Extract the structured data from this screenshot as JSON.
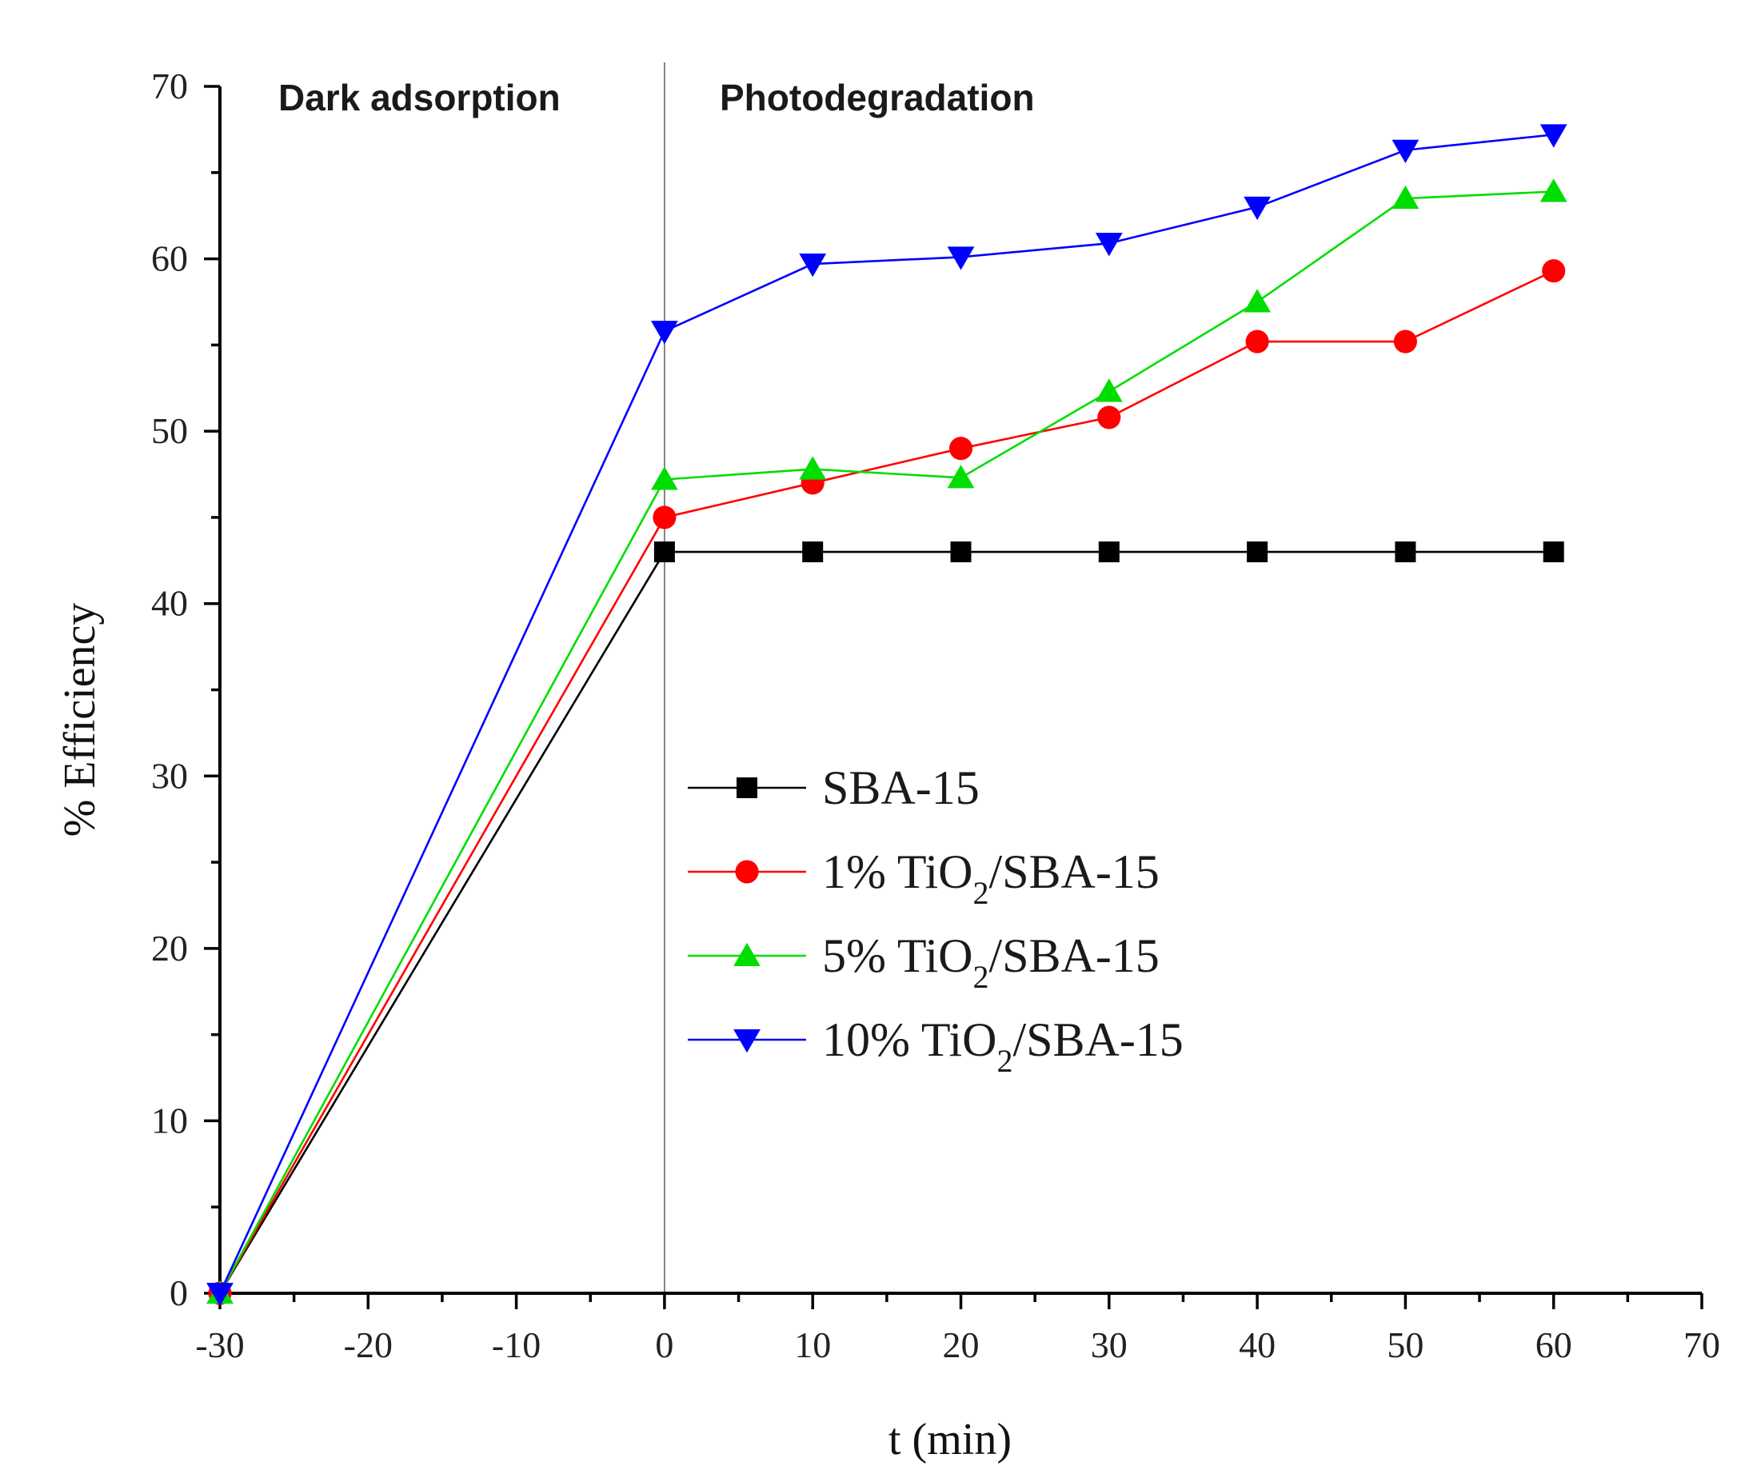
{
  "chart_data": {
    "type": "line",
    "title": "",
    "xlabel": "t (min)",
    "ylabel": "% Efficiency",
    "xlim": [
      -30,
      70
    ],
    "ylim": [
      0,
      70
    ],
    "xticks": [
      -30,
      -20,
      -10,
      0,
      10,
      20,
      30,
      40,
      50,
      60,
      70
    ],
    "yticks": [
      0,
      10,
      20,
      30,
      40,
      50,
      60,
      70
    ],
    "xtick_labels": [
      "-30",
      "-20",
      "-10",
      "0",
      "10",
      "20",
      "30",
      "40",
      "50",
      "60",
      "70"
    ],
    "ytick_labels": [
      "0",
      "10",
      "20",
      "30",
      "40",
      "50",
      "60",
      "70"
    ],
    "divider_x": 0,
    "region_labels": {
      "left": "Dark adsorption",
      "right": "Photodegradation"
    },
    "legend_position": "center",
    "series": [
      {
        "name": "SBA-15",
        "legend": {
          "pre": "SBA-15",
          "sub": "",
          "post": ""
        },
        "color": "#000000",
        "marker": "square",
        "x": [
          -30,
          0,
          10,
          20,
          30,
          40,
          50,
          60
        ],
        "y": [
          0,
          43,
          43,
          43,
          43,
          43,
          43,
          43
        ]
      },
      {
        "name": "1% TiO2/SBA-15",
        "legend": {
          "pre": "1% TiO",
          "sub": "2",
          "post": "/SBA-15"
        },
        "color": "#ff0000",
        "marker": "circle",
        "x": [
          -30,
          0,
          10,
          20,
          30,
          40,
          50,
          60
        ],
        "y": [
          0,
          45,
          47,
          49,
          50.8,
          55.2,
          55.2,
          59.3
        ]
      },
      {
        "name": "5% TiO2/SBA-15",
        "legend": {
          "pre": "5% TiO",
          "sub": "2",
          "post": "/SBA-15"
        },
        "color": "#00dd00",
        "marker": "triangle-up",
        "x": [
          -30,
          0,
          10,
          20,
          30,
          40,
          50,
          60
        ],
        "y": [
          0,
          47.2,
          47.8,
          47.3,
          52.3,
          57.5,
          63.5,
          63.9
        ]
      },
      {
        "name": "10% TiO2/SBA-15",
        "legend": {
          "pre": "10% TiO",
          "sub": "2",
          "post": "/SBA-15"
        },
        "color": "#0000ff",
        "marker": "triangle-down",
        "x": [
          -30,
          0,
          10,
          20,
          30,
          40,
          50,
          60
        ],
        "y": [
          0,
          55.8,
          59.7,
          60.1,
          60.9,
          63,
          66.3,
          67.2
        ]
      }
    ]
  }
}
